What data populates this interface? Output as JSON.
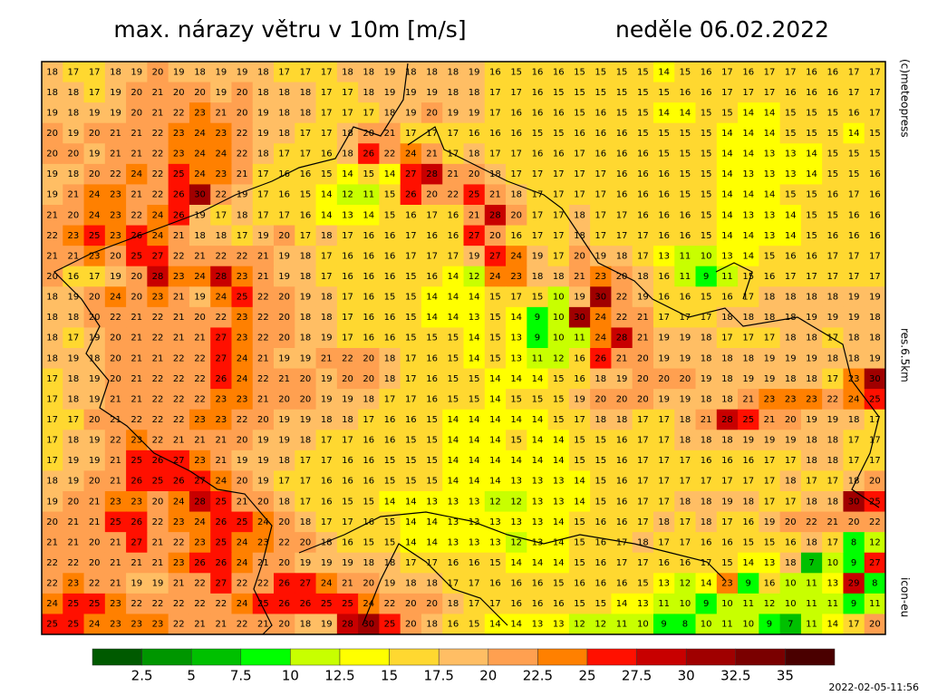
{
  "header": {
    "title": "max. nárazy větru v 10m [m/s]",
    "date": "neděle 06.02.2022"
  },
  "grid": {
    "rows": [
      [
        18,
        17,
        17,
        18,
        19,
        20,
        19,
        18,
        19,
        19,
        18,
        17,
        17,
        17,
        18,
        18,
        19,
        18,
        18,
        18,
        19,
        16,
        15,
        16,
        16,
        15,
        15,
        15,
        15,
        14,
        15,
        16,
        17,
        16,
        17,
        17,
        16,
        16,
        17,
        17
      ],
      [
        18,
        18,
        17,
        19,
        20,
        21,
        20,
        20,
        19,
        20,
        18,
        18,
        18,
        17,
        17,
        18,
        19,
        19,
        19,
        18,
        18,
        17,
        17,
        16,
        15,
        15,
        15,
        15,
        15,
        15,
        16,
        16,
        17,
        17,
        17,
        16,
        16,
        16,
        17,
        17
      ],
      [
        19,
        18,
        19,
        19,
        20,
        21,
        22,
        23,
        21,
        20,
        19,
        18,
        18,
        17,
        17,
        17,
        18,
        19,
        20,
        19,
        19,
        17,
        16,
        16,
        16,
        15,
        16,
        15,
        15,
        14,
        14,
        15,
        15,
        14,
        14,
        15,
        15,
        15,
        16,
        17
      ],
      [
        20,
        19,
        20,
        21,
        21,
        22,
        23,
        24,
        23,
        22,
        19,
        18,
        17,
        17,
        18,
        20,
        21,
        17,
        17,
        17,
        16,
        16,
        16,
        15,
        15,
        16,
        16,
        16,
        15,
        15,
        15,
        15,
        14,
        14,
        14,
        15,
        15,
        15,
        14,
        15
      ],
      [
        20,
        20,
        19,
        21,
        21,
        22,
        23,
        24,
        24,
        22,
        18,
        17,
        17,
        16,
        18,
        26,
        22,
        24,
        21,
        17,
        18,
        17,
        17,
        16,
        16,
        17,
        16,
        16,
        16,
        15,
        15,
        15,
        14,
        14,
        13,
        13,
        14,
        15,
        15,
        15
      ],
      [
        19,
        18,
        20,
        22,
        24,
        22,
        25,
        24,
        23,
        21,
        17,
        16,
        16,
        15,
        14,
        15,
        14,
        27,
        28,
        21,
        20,
        18,
        17,
        17,
        17,
        17,
        17,
        16,
        16,
        16,
        15,
        15,
        14,
        13,
        13,
        13,
        14,
        15,
        15,
        16
      ],
      [
        19,
        21,
        24,
        23,
        21,
        22,
        26,
        30,
        22,
        19,
        17,
        16,
        15,
        14,
        12,
        11,
        15,
        26,
        20,
        22,
        25,
        21,
        18,
        17,
        17,
        17,
        17,
        16,
        16,
        16,
        15,
        15,
        14,
        14,
        14,
        15,
        15,
        16,
        17,
        16
      ],
      [
        21,
        20,
        24,
        23,
        22,
        24,
        26,
        19,
        17,
        18,
        17,
        17,
        16,
        14,
        13,
        14,
        15,
        16,
        17,
        16,
        21,
        28,
        20,
        17,
        17,
        18,
        17,
        17,
        16,
        16,
        16,
        15,
        14,
        13,
        13,
        14,
        15,
        15,
        16,
        16
      ],
      [
        22,
        23,
        25,
        23,
        26,
        24,
        21,
        18,
        18,
        17,
        19,
        20,
        17,
        18,
        17,
        16,
        16,
        17,
        16,
        16,
        27,
        20,
        16,
        17,
        17,
        18,
        17,
        17,
        17,
        16,
        16,
        15,
        14,
        14,
        13,
        14,
        15,
        16,
        16,
        16
      ],
      [
        21,
        21,
        23,
        20,
        25,
        27,
        22,
        21,
        22,
        22,
        21,
        19,
        18,
        17,
        16,
        16,
        16,
        17,
        17,
        17,
        19,
        27,
        24,
        19,
        17,
        20,
        19,
        18,
        17,
        13,
        11,
        10,
        13,
        14,
        15,
        16,
        16,
        17,
        17,
        17
      ],
      [
        20,
        16,
        17,
        19,
        20,
        28,
        23,
        24,
        28,
        23,
        21,
        19,
        18,
        17,
        16,
        16,
        16,
        15,
        16,
        14,
        12,
        24,
        23,
        18,
        18,
        21,
        23,
        20,
        18,
        16,
        11,
        9,
        11,
        15,
        16,
        17,
        17,
        17,
        17,
        17
      ],
      [
        18,
        19,
        20,
        24,
        20,
        23,
        21,
        19,
        24,
        25,
        22,
        20,
        19,
        18,
        17,
        16,
        15,
        15,
        14,
        14,
        14,
        15,
        17,
        15,
        10,
        19,
        30,
        22,
        19,
        16,
        16,
        15,
        16,
        17,
        18,
        18,
        18,
        18,
        19,
        19
      ],
      [
        18,
        18,
        20,
        22,
        21,
        22,
        21,
        20,
        22,
        23,
        22,
        20,
        18,
        18,
        17,
        16,
        16,
        15,
        14,
        14,
        13,
        15,
        14,
        9,
        10,
        30,
        24,
        22,
        21,
        17,
        17,
        17,
        18,
        18,
        18,
        18,
        19,
        19,
        19,
        18
      ],
      [
        18,
        17,
        19,
        20,
        21,
        22,
        21,
        21,
        27,
        23,
        22,
        20,
        18,
        19,
        17,
        16,
        16,
        15,
        15,
        15,
        14,
        15,
        13,
        9,
        10,
        11,
        24,
        28,
        21,
        19,
        19,
        18,
        17,
        17,
        17,
        18,
        18,
        17,
        18,
        18
      ],
      [
        18,
        19,
        18,
        20,
        21,
        21,
        22,
        22,
        27,
        24,
        21,
        19,
        19,
        21,
        22,
        20,
        18,
        17,
        16,
        15,
        14,
        15,
        13,
        11,
        12,
        16,
        26,
        21,
        20,
        19,
        19,
        18,
        18,
        18,
        19,
        19,
        19,
        18,
        18,
        19
      ],
      [
        17,
        18,
        19,
        20,
        21,
        22,
        22,
        22,
        26,
        24,
        22,
        21,
        20,
        19,
        20,
        20,
        18,
        17,
        16,
        15,
        15,
        14,
        14,
        14,
        15,
        16,
        18,
        19,
        20,
        20,
        20,
        19,
        18,
        19,
        19,
        18,
        18,
        17,
        23,
        30
      ],
      [
        17,
        18,
        19,
        21,
        21,
        22,
        22,
        22,
        23,
        23,
        21,
        20,
        20,
        19,
        19,
        18,
        17,
        17,
        16,
        15,
        15,
        14,
        15,
        15,
        15,
        19,
        20,
        20,
        20,
        19,
        19,
        18,
        18,
        21,
        23,
        23,
        23,
        22,
        24,
        25
      ],
      [
        17,
        17,
        20,
        21,
        22,
        22,
        22,
        23,
        23,
        22,
        20,
        19,
        19,
        18,
        18,
        17,
        16,
        16,
        15,
        14,
        14,
        14,
        14,
        14,
        15,
        17,
        18,
        18,
        17,
        17,
        18,
        21,
        28,
        25,
        21,
        20,
        19,
        19,
        18,
        17
      ],
      [
        17,
        18,
        19,
        22,
        23,
        22,
        21,
        21,
        21,
        20,
        19,
        19,
        18,
        17,
        17,
        16,
        16,
        15,
        15,
        14,
        14,
        14,
        15,
        14,
        14,
        15,
        15,
        16,
        17,
        17,
        18,
        18,
        18,
        19,
        19,
        19,
        18,
        18,
        17,
        17
      ],
      [
        17,
        19,
        19,
        21,
        25,
        26,
        27,
        23,
        21,
        19,
        19,
        18,
        17,
        17,
        16,
        16,
        15,
        15,
        15,
        14,
        14,
        14,
        14,
        14,
        14,
        15,
        15,
        16,
        17,
        17,
        17,
        16,
        16,
        16,
        17,
        17,
        18,
        18,
        17,
        17
      ],
      [
        18,
        19,
        20,
        21,
        26,
        25,
        26,
        27,
        24,
        20,
        19,
        17,
        17,
        16,
        16,
        16,
        15,
        15,
        15,
        14,
        14,
        14,
        13,
        13,
        13,
        14,
        15,
        16,
        17,
        17,
        17,
        17,
        17,
        17,
        17,
        18,
        17,
        17,
        18,
        20
      ],
      [
        19,
        20,
        21,
        23,
        23,
        20,
        24,
        28,
        25,
        21,
        20,
        18,
        17,
        16,
        15,
        15,
        14,
        14,
        13,
        13,
        13,
        12,
        12,
        13,
        13,
        14,
        15,
        16,
        17,
        17,
        18,
        18,
        19,
        18,
        17,
        17,
        18,
        18,
        30,
        25
      ],
      [
        20,
        21,
        21,
        25,
        26,
        22,
        23,
        24,
        26,
        25,
        24,
        20,
        18,
        17,
        17,
        16,
        15,
        14,
        14,
        13,
        13,
        13,
        13,
        13,
        14,
        15,
        16,
        16,
        17,
        18,
        17,
        18,
        17,
        16,
        19,
        20,
        22,
        21,
        20,
        22
      ],
      [
        21,
        21,
        20,
        21,
        27,
        21,
        22,
        23,
        25,
        24,
        23,
        22,
        20,
        18,
        16,
        15,
        15,
        14,
        14,
        13,
        13,
        13,
        12,
        13,
        14,
        15,
        16,
        17,
        18,
        17,
        17,
        16,
        16,
        15,
        15,
        16,
        18,
        17,
        8,
        12
      ],
      [
        22,
        22,
        20,
        21,
        21,
        21,
        23,
        26,
        26,
        24,
        21,
        20,
        19,
        19,
        19,
        18,
        18,
        17,
        17,
        16,
        16,
        15,
        14,
        14,
        14,
        15,
        16,
        17,
        17,
        16,
        16,
        17,
        15,
        14,
        13,
        18,
        7,
        10,
        9,
        27
      ],
      [
        22,
        23,
        22,
        21,
        19,
        19,
        21,
        22,
        27,
        22,
        22,
        26,
        27,
        24,
        21,
        20,
        19,
        18,
        18,
        17,
        17,
        16,
        16,
        16,
        15,
        16,
        16,
        16,
        15,
        13,
        12,
        14,
        23,
        9,
        16,
        10,
        11,
        13,
        29,
        8
      ],
      [
        24,
        25,
        25,
        23,
        22,
        22,
        22,
        22,
        22,
        24,
        25,
        26,
        26,
        25,
        25,
        24,
        22,
        20,
        20,
        18,
        17,
        17,
        16,
        16,
        16,
        15,
        15,
        14,
        13,
        11,
        10,
        9,
        10,
        11,
        12,
        10,
        11,
        11,
        9,
        11
      ],
      [
        25,
        25,
        24,
        23,
        23,
        23,
        22,
        21,
        21,
        22,
        21,
        20,
        18,
        19,
        28,
        30,
        25,
        20,
        18,
        16,
        15,
        14,
        14,
        13,
        13,
        12,
        12,
        11,
        10,
        9,
        8,
        10,
        11,
        10,
        9,
        7,
        11,
        14,
        17,
        20
      ]
    ]
  },
  "colorbar": {
    "colors": [
      "#005a00",
      "#009600",
      "#00c000",
      "#00ff00",
      "#c8ff00",
      "#ffff00",
      "#ffd830",
      "#ffbe64",
      "#ffa050",
      "#ff8000",
      "#ff1000",
      "#c80000",
      "#a00000",
      "#7a0000",
      "#4a0000"
    ],
    "ticks": [
      2.5,
      5,
      7.5,
      10,
      12.5,
      15,
      17.5,
      20,
      22.5,
      25,
      27.5,
      30,
      32.5,
      35
    ]
  },
  "labels": {
    "credit": "(c)meteopress",
    "resolution": "res.6.5km",
    "model": "icon-eu",
    "timestamp": "2022-02-05-11:56"
  }
}
